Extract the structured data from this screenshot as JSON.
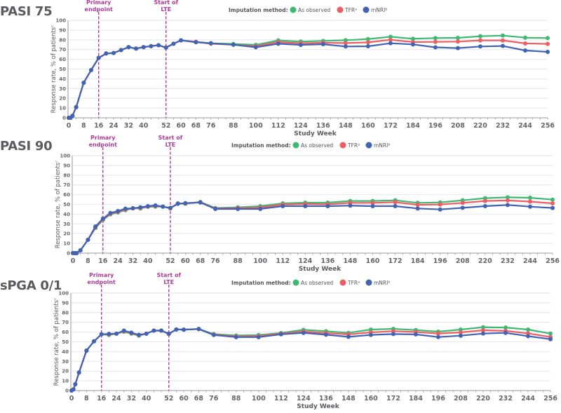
{
  "legend": {
    "title": "Imputation method:",
    "items": [
      {
        "key": "observed",
        "label": "As observed",
        "color": "#3dba72"
      },
      {
        "key": "tfr",
        "label": "TFRᵃ",
        "color": "#ef5d63"
      },
      {
        "key": "mnri",
        "label": "mNRIᵇ",
        "color": "#4063b4"
      }
    ]
  },
  "annotation_color": "#b03a9c",
  "chart_data": [
    {
      "type": "line",
      "title": "PASI 75",
      "xlabel": "Study Week",
      "ylabel": "Response rate, % of patientsᶜ",
      "ylim": [
        0,
        100
      ],
      "xlim": [
        0,
        256
      ],
      "yticks": [
        0,
        10,
        20,
        30,
        40,
        50,
        60,
        70,
        80,
        90,
        100
      ],
      "xticks": [
        0,
        8,
        16,
        24,
        32,
        40,
        52,
        60,
        68,
        76,
        88,
        100,
        112,
        124,
        136,
        148,
        160,
        172,
        184,
        196,
        208,
        220,
        232,
        244,
        256
      ],
      "grid": true,
      "legend_position": "top-right",
      "annotations": [
        {
          "x": 16,
          "label_line1": "Primary",
          "label_line2": "endpoint"
        },
        {
          "x": 52,
          "label_line1": "Start of",
          "label_line2": "LTE"
        }
      ],
      "x": [
        0,
        1,
        2,
        4,
        8,
        12,
        16,
        20,
        24,
        28,
        32,
        36,
        40,
        44,
        48,
        52,
        56,
        60,
        68,
        76,
        88,
        100,
        112,
        124,
        136,
        148,
        160,
        172,
        184,
        196,
        208,
        220,
        232,
        244,
        256
      ],
      "series": [
        {
          "name": "As observed",
          "key": "observed",
          "values": [
            0,
            0,
            2,
            11,
            36,
            49,
            61.5,
            66,
            66.5,
            69.5,
            72.5,
            71,
            72.5,
            73.5,
            74.5,
            72,
            76,
            79.5,
            78,
            76.5,
            75.8,
            74.8,
            79.4,
            78.2,
            78.9,
            79.6,
            80.8,
            83.2,
            81.1,
            81.8,
            82,
            83.7,
            84.4,
            82.2,
            81.8
          ]
        },
        {
          "name": "TFRᵃ",
          "key": "tfr",
          "values": [
            0,
            0,
            2,
            11,
            36,
            49,
            61.5,
            66,
            66.5,
            69.5,
            72.5,
            71,
            72.5,
            73.5,
            74.5,
            72,
            76,
            79.5,
            78,
            76,
            75,
            73.5,
            77.7,
            76.5,
            77,
            76.7,
            77.4,
            80.1,
            77.7,
            77.9,
            78.2,
            79.4,
            79.4,
            76.3,
            75.8
          ]
        },
        {
          "name": "mNRIᵇ",
          "key": "mnri",
          "values": [
            0,
            0,
            2,
            11,
            36,
            49,
            61.5,
            66,
            66.5,
            69.5,
            72.5,
            71,
            72.5,
            73.5,
            74.5,
            72,
            76,
            79.5,
            77.5,
            76.5,
            75,
            72.4,
            76,
            74.8,
            75.5,
            73.2,
            73.4,
            76.5,
            75.3,
            72.3,
            71.5,
            73.2,
            73.7,
            69.1,
            67.6
          ]
        }
      ]
    },
    {
      "type": "line",
      "title": "PASI 90",
      "xlabel": "Study Week",
      "ylabel": "Response rate, % of patientsᶜ",
      "ylim": [
        0,
        100
      ],
      "xlim": [
        0,
        256
      ],
      "yticks": [
        0,
        10,
        20,
        30,
        40,
        50,
        60,
        70,
        80,
        90,
        100
      ],
      "xticks": [
        0,
        8,
        16,
        24,
        32,
        40,
        52,
        60,
        68,
        76,
        88,
        100,
        112,
        124,
        136,
        148,
        160,
        172,
        184,
        196,
        208,
        220,
        232,
        244,
        256
      ],
      "grid": true,
      "legend_position": "top-right",
      "annotations": [
        {
          "x": 16,
          "label_line1": "Primary",
          "label_line2": "endpoint"
        },
        {
          "x": 52,
          "label_line1": "Start of",
          "label_line2": "LTE"
        }
      ],
      "x": [
        0,
        1,
        2,
        4,
        8,
        12,
        16,
        20,
        24,
        28,
        32,
        36,
        40,
        44,
        48,
        52,
        56,
        60,
        68,
        76,
        88,
        100,
        112,
        124,
        136,
        148,
        160,
        172,
        184,
        196,
        208,
        220,
        232,
        244,
        256
      ],
      "series": [
        {
          "name": "As observed",
          "key": "observed",
          "values": [
            0,
            0,
            0,
            2.9,
            13.7,
            25.7,
            34,
            39.8,
            41.7,
            44.1,
            46,
            45.8,
            47.5,
            47.7,
            47.7,
            45.8,
            51.1,
            50.6,
            52.5,
            46.3,
            47,
            48.2,
            51.1,
            51.8,
            51.8,
            53.5,
            53.5,
            54.2,
            51.6,
            52,
            54.2,
            56.4,
            57.3,
            56.8,
            54.9
          ]
        },
        {
          "name": "TFRᵃ",
          "key": "tfr",
          "values": [
            0,
            0,
            0,
            2.9,
            13.7,
            26.5,
            34.6,
            40.5,
            42.4,
            44.8,
            46,
            46.4,
            47.8,
            48.3,
            47.7,
            46.1,
            50.8,
            51,
            52.2,
            45.8,
            46.2,
            46.8,
            49.9,
            50.4,
            50.1,
            51.6,
            51.6,
            52.3,
            49.6,
            49.9,
            51.6,
            53.5,
            54,
            52.9,
            51.1
          ]
        },
        {
          "name": "mNRIᵇ",
          "key": "mnri",
          "values": [
            0,
            0,
            0,
            2.9,
            13.7,
            27.3,
            35.3,
            41.2,
            43.2,
            45.6,
            46,
            47,
            48.2,
            48.9,
            47.7,
            46.5,
            50.6,
            51.3,
            52,
            45.3,
            45.3,
            45.3,
            48.2,
            48.2,
            48.2,
            48.7,
            48.2,
            48.2,
            45.8,
            44.8,
            46.5,
            48.2,
            49.4,
            47.7,
            46.3
          ]
        }
      ]
    },
    {
      "type": "line",
      "title": "sPGA 0/1",
      "xlabel": "Study Week",
      "ylabel": "Response rate, % of patientsᶜ",
      "ylim": [
        0,
        100
      ],
      "xlim": [
        0,
        256
      ],
      "yticks": [
        0,
        10,
        20,
        30,
        40,
        50,
        60,
        70,
        80,
        90,
        100
      ],
      "xticks": [
        0,
        8,
        16,
        24,
        32,
        40,
        52,
        60,
        68,
        76,
        88,
        100,
        112,
        124,
        136,
        148,
        160,
        172,
        184,
        196,
        208,
        220,
        232,
        244,
        256
      ],
      "grid": true,
      "legend_position": "top-right",
      "annotations": [
        {
          "x": 16,
          "label_line1": "Primary",
          "label_line2": "endpoint"
        },
        {
          "x": 52,
          "label_line1": "Start of",
          "label_line2": "LTE"
        }
      ],
      "x": [
        0,
        1,
        2,
        4,
        8,
        12,
        16,
        20,
        24,
        28,
        32,
        36,
        40,
        44,
        48,
        52,
        56,
        60,
        68,
        76,
        88,
        100,
        112,
        124,
        136,
        148,
        160,
        172,
        184,
        196,
        208,
        220,
        232,
        244,
        256
      ],
      "series": [
        {
          "name": "As observed",
          "key": "observed",
          "values": [
            0,
            1.2,
            6.5,
            18.5,
            41,
            50.5,
            57.7,
            57,
            58.4,
            60.3,
            58.4,
            56.3,
            58.4,
            61.5,
            61.5,
            58,
            62.7,
            62.5,
            63.2,
            58,
            56.5,
            57,
            59.1,
            62.3,
            60.9,
            59.2,
            62.6,
            63.3,
            62.1,
            60.4,
            62.6,
            65,
            64.7,
            62.6,
            58.5
          ]
        },
        {
          "name": "TFRᵃ",
          "key": "tfr",
          "values": [
            0,
            1.2,
            6.5,
            18.5,
            41,
            50.5,
            57.7,
            57.6,
            58.4,
            60.9,
            58.9,
            56.8,
            58.4,
            61.5,
            61.5,
            58.2,
            62.7,
            62.5,
            63,
            57.5,
            55.5,
            55.8,
            58.4,
            60.6,
            59,
            57.6,
            59.7,
            60.9,
            60.1,
            58.5,
            59.7,
            61.9,
            61.2,
            58.7,
            54.9
          ]
        },
        {
          "name": "mNRIᵇ",
          "key": "mnri",
          "values": [
            0,
            1.2,
            6.5,
            18.5,
            41,
            50.5,
            57.7,
            58.2,
            58.4,
            61.5,
            59.4,
            57.2,
            58.4,
            61.5,
            61.5,
            58.4,
            62.7,
            62.5,
            63.2,
            57,
            54.8,
            54.8,
            57.7,
            59.2,
            57.3,
            55.1,
            57.1,
            58,
            57.6,
            54.9,
            56.3,
            58.5,
            59.2,
            55.8,
            52.7
          ]
        }
      ]
    }
  ]
}
